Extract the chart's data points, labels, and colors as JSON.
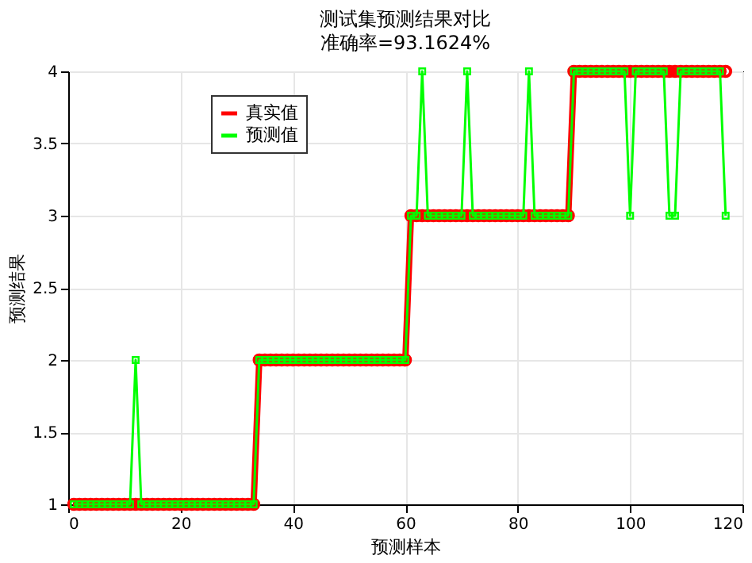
{
  "chart_data": {
    "type": "line",
    "title": "测试集预测结果对比",
    "subtitle": "准确率=93.1624%",
    "xlabel": "预测样本",
    "ylabel": "预测结果",
    "x": [
      1,
      2,
      3,
      4,
      5,
      6,
      7,
      8,
      9,
      10,
      11,
      12,
      13,
      14,
      15,
      16,
      17,
      18,
      19,
      20,
      21,
      22,
      23,
      24,
      25,
      26,
      27,
      28,
      29,
      30,
      31,
      32,
      33,
      34,
      35,
      36,
      37,
      38,
      39,
      40,
      41,
      42,
      43,
      44,
      45,
      46,
      47,
      48,
      49,
      50,
      51,
      52,
      53,
      54,
      55,
      56,
      57,
      58,
      59,
      60,
      61,
      62,
      63,
      64,
      65,
      66,
      67,
      68,
      69,
      70,
      71,
      72,
      73,
      74,
      75,
      76,
      77,
      78,
      79,
      80,
      81,
      82,
      83,
      84,
      85,
      86,
      87,
      88,
      89,
      90,
      91,
      92,
      93,
      94,
      95,
      96,
      97,
      98,
      99,
      100,
      101,
      102,
      103,
      104,
      105,
      106,
      107,
      108,
      109,
      110,
      111,
      112,
      113,
      114,
      115,
      116,
      117
    ],
    "series": [
      {
        "name": "真实值",
        "color": "#ff0000",
        "marker": "circle",
        "values": [
          1,
          1,
          1,
          1,
          1,
          1,
          1,
          1,
          1,
          1,
          1,
          1,
          1,
          1,
          1,
          1,
          1,
          1,
          1,
          1,
          1,
          1,
          1,
          1,
          1,
          1,
          1,
          1,
          1,
          1,
          1,
          1,
          1,
          2,
          2,
          2,
          2,
          2,
          2,
          2,
          2,
          2,
          2,
          2,
          2,
          2,
          2,
          2,
          2,
          2,
          2,
          2,
          2,
          2,
          2,
          2,
          2,
          2,
          2,
          2,
          3,
          3,
          3,
          3,
          3,
          3,
          3,
          3,
          3,
          3,
          3,
          3,
          3,
          3,
          3,
          3,
          3,
          3,
          3,
          3,
          3,
          3,
          3,
          3,
          3,
          3,
          3,
          3,
          3,
          4,
          4,
          4,
          4,
          4,
          4,
          4,
          4,
          4,
          4,
          4,
          4,
          4,
          4,
          4,
          4,
          4,
          4,
          4,
          4,
          4,
          4,
          4,
          4,
          4,
          4,
          4,
          4
        ]
      },
      {
        "name": "预测值",
        "color": "#00ff00",
        "marker": "square",
        "values": [
          1,
          1,
          1,
          1,
          1,
          1,
          1,
          1,
          1,
          1,
          1,
          2,
          1,
          1,
          1,
          1,
          1,
          1,
          1,
          1,
          1,
          1,
          1,
          1,
          1,
          1,
          1,
          1,
          1,
          1,
          1,
          1,
          1,
          2,
          2,
          2,
          2,
          2,
          2,
          2,
          2,
          2,
          2,
          2,
          2,
          2,
          2,
          2,
          2,
          2,
          2,
          2,
          2,
          2,
          2,
          2,
          2,
          2,
          2,
          2,
          3,
          3,
          4,
          3,
          3,
          3,
          3,
          3,
          3,
          3,
          4,
          3,
          3,
          3,
          3,
          3,
          3,
          3,
          3,
          3,
          3,
          4,
          3,
          3,
          3,
          3,
          3,
          3,
          3,
          4,
          4,
          4,
          4,
          4,
          4,
          4,
          4,
          4,
          4,
          3,
          4,
          4,
          4,
          4,
          4,
          4,
          3,
          3,
          4,
          4,
          4,
          4,
          4,
          4,
          4,
          4,
          3
        ]
      }
    ],
    "xlim": [
      0,
      120
    ],
    "xticks": [
      0,
      20,
      40,
      60,
      80,
      100,
      120
    ],
    "ylim": [
      1,
      4
    ],
    "yticks": [
      1,
      1.5,
      2,
      2.5,
      3,
      3.5,
      4
    ],
    "grid": true,
    "legend": "top left",
    "line_style": "solid"
  }
}
